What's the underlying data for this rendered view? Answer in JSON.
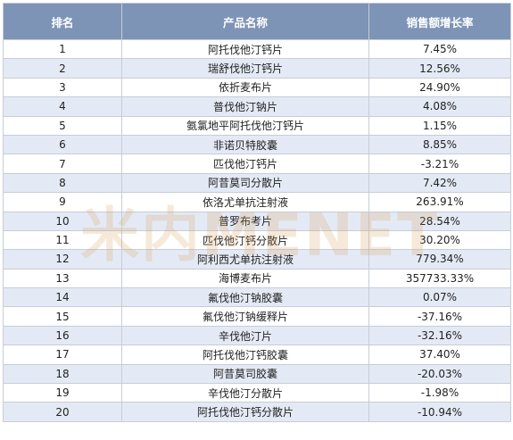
{
  "table": {
    "headers": [
      "排名",
      "产品名称",
      "销售额增长率"
    ],
    "rows": [
      {
        "rank": "1",
        "name": "阿托伐他汀钙片",
        "growth": "7.45%"
      },
      {
        "rank": "2",
        "name": "瑞舒伐他汀钙片",
        "growth": "12.56%"
      },
      {
        "rank": "3",
        "name": "依折麦布片",
        "growth": "24.90%"
      },
      {
        "rank": "4",
        "name": "普伐他汀钠片",
        "growth": "4.08%"
      },
      {
        "rank": "5",
        "name": "氨氯地平阿托伐他汀钙片",
        "growth": "1.15%"
      },
      {
        "rank": "6",
        "name": "非诺贝特胶囊",
        "growth": "8.85%"
      },
      {
        "rank": "7",
        "name": "匹伐他汀钙片",
        "growth": "-3.21%"
      },
      {
        "rank": "8",
        "name": "阿昔莫司分散片",
        "growth": "7.42%"
      },
      {
        "rank": "9",
        "name": "依洛尤单抗注射液",
        "growth": "263.91%"
      },
      {
        "rank": "10",
        "name": "普罗布考片",
        "growth": "28.54%"
      },
      {
        "rank": "11",
        "name": "匹伐他汀钙分散片",
        "growth": "30.20%"
      },
      {
        "rank": "12",
        "name": "阿利西尤单抗注射液",
        "growth": "779.34%"
      },
      {
        "rank": "13",
        "name": "海博麦布片",
        "growth": "357733.33%"
      },
      {
        "rank": "14",
        "name": "氟伐他汀钠胶囊",
        "growth": "0.07%"
      },
      {
        "rank": "15",
        "name": "氟伐他汀钠缓释片",
        "growth": "-37.16%"
      },
      {
        "rank": "16",
        "name": "辛伐他汀片",
        "growth": "-32.16%"
      },
      {
        "rank": "17",
        "name": "阿托伐他汀钙胶囊",
        "growth": "37.40%"
      },
      {
        "rank": "18",
        "name": "阿昔莫司胶囊",
        "growth": "-20.03%"
      },
      {
        "rank": "19",
        "name": "辛伐他汀分散片",
        "growth": "-1.98%"
      },
      {
        "rank": "20",
        "name": "阿托伐他汀钙分散片",
        "growth": "-10.94%"
      }
    ]
  },
  "watermark": {
    "text": "米内MENET",
    "color": "#d9a05a"
  }
}
